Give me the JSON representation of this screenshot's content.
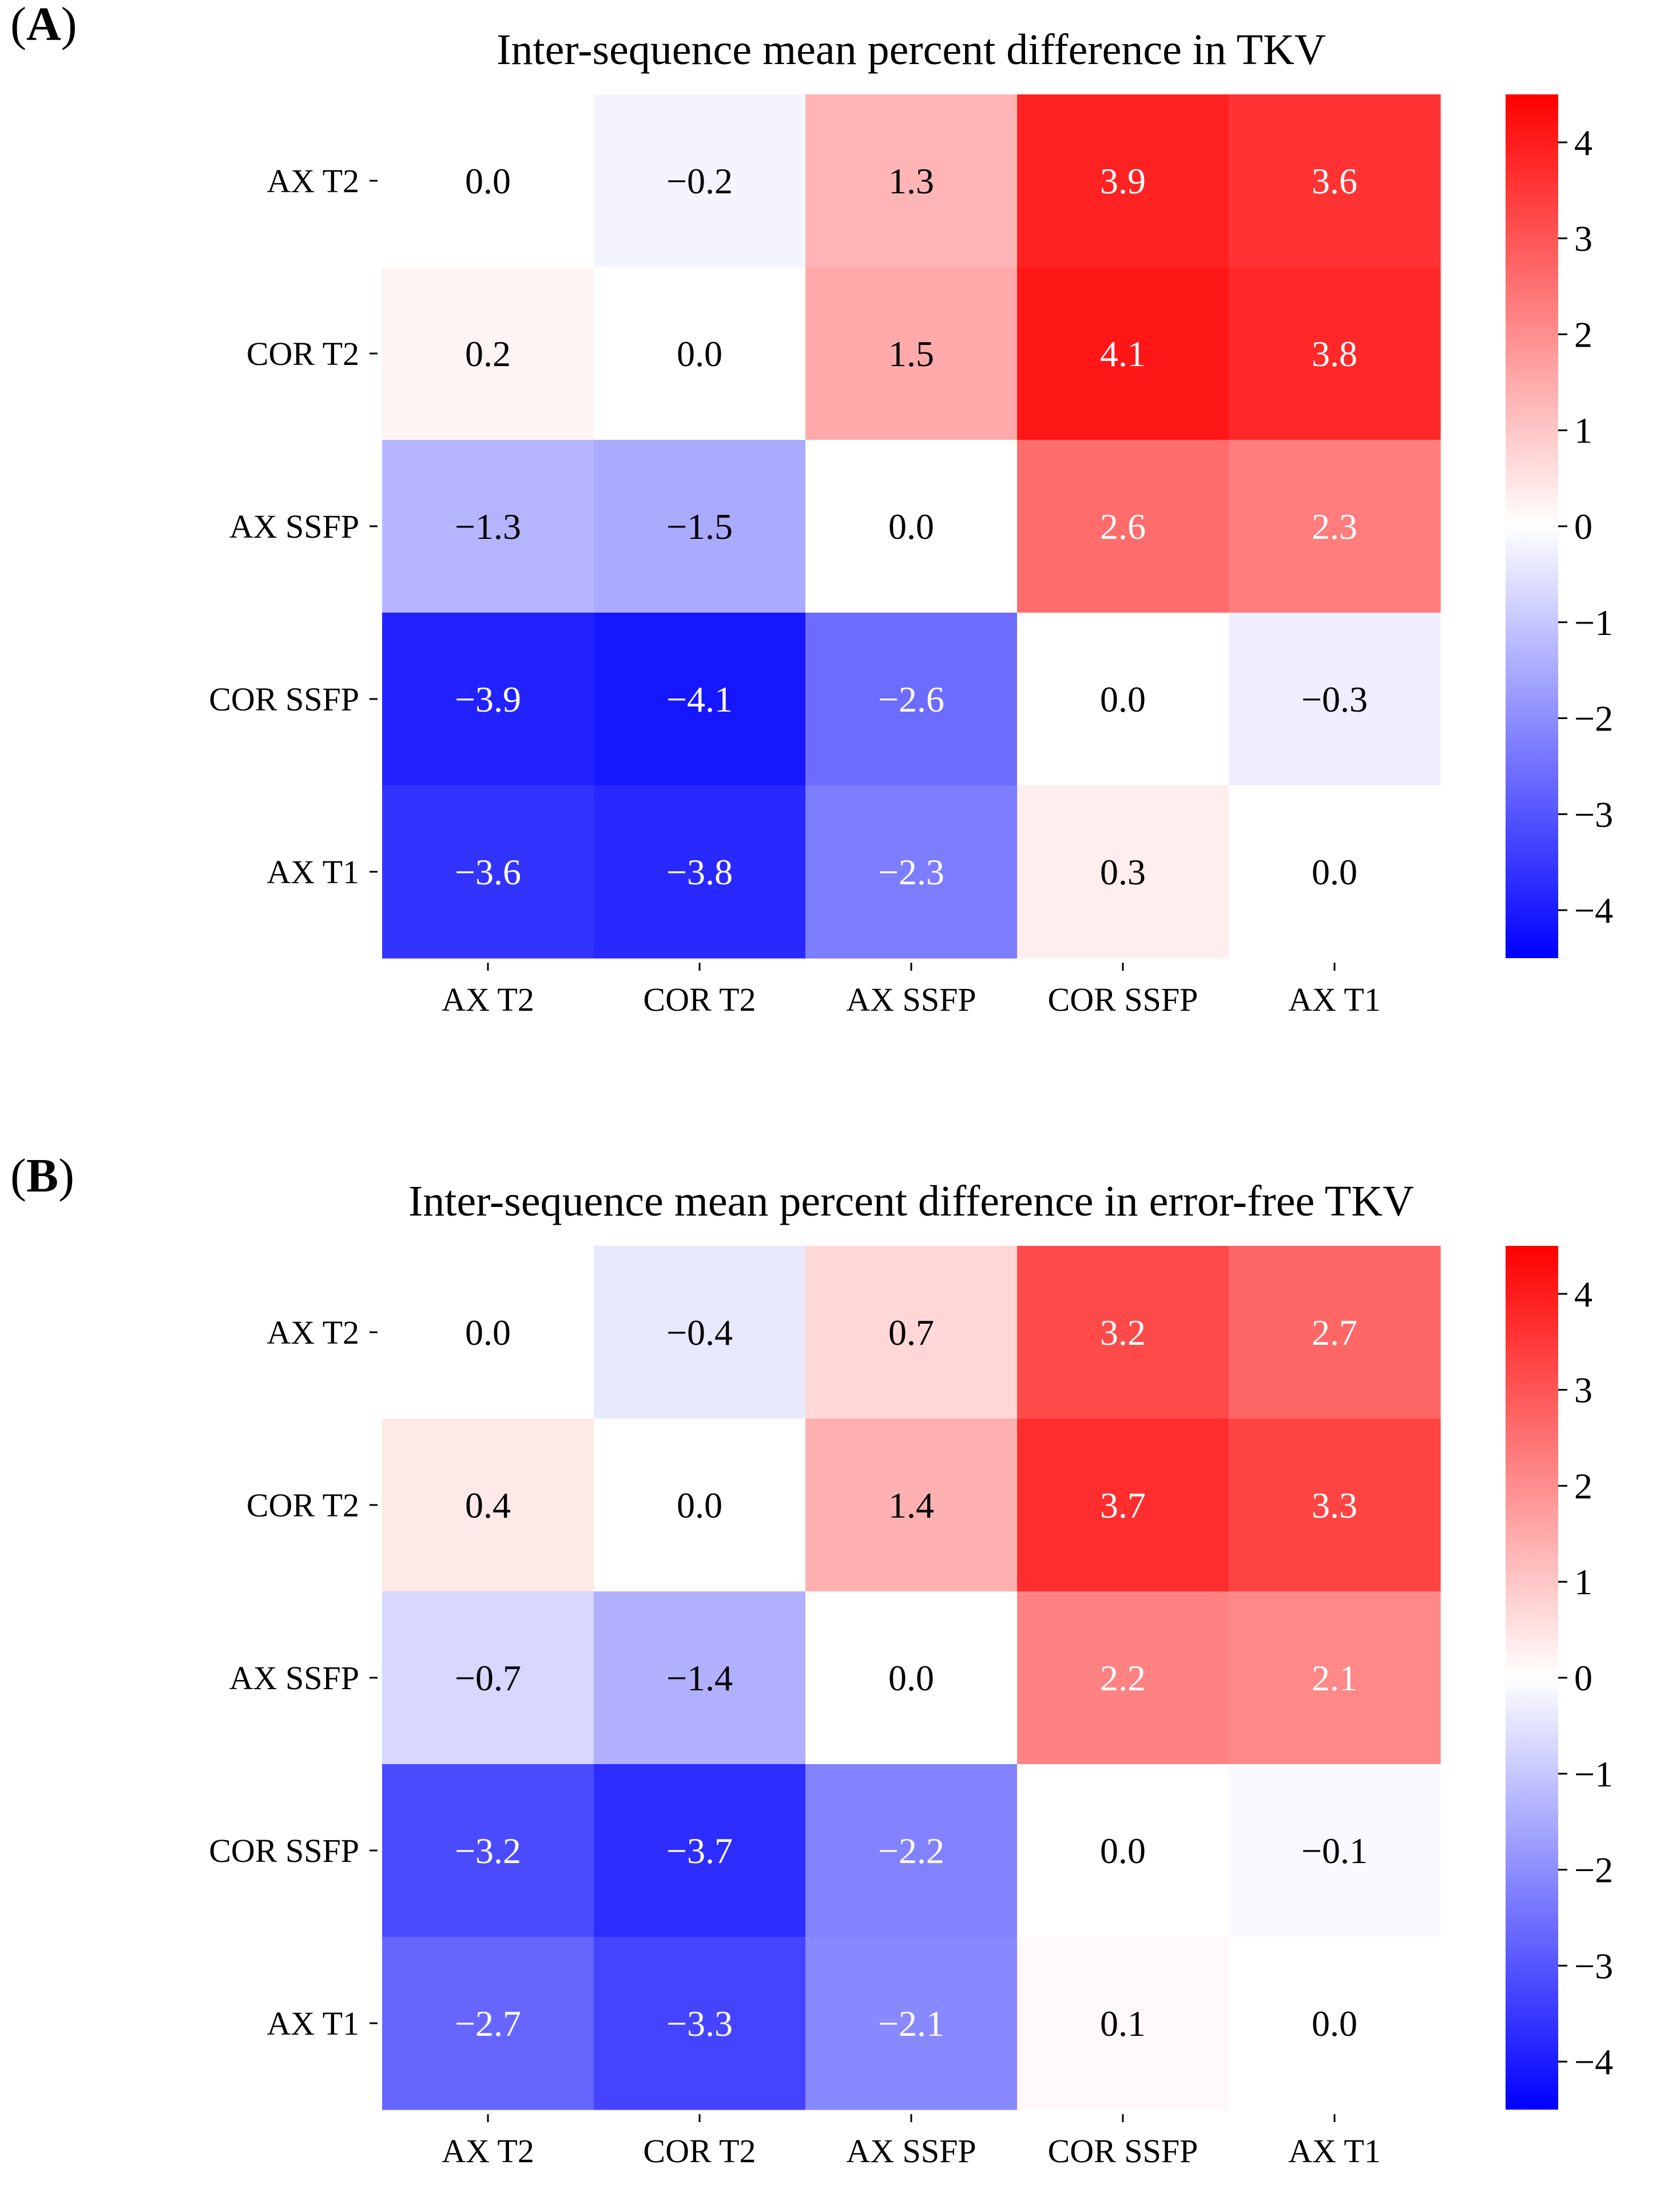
{
  "chart_data": [
    {
      "type": "heatmap",
      "panel_label": "A",
      "title": "Inter-sequence mean percent difference in TKV",
      "row_labels": [
        "AX T2",
        "COR T2",
        "AX SSFP",
        "COR SSFP",
        "AX T1"
      ],
      "column_labels": [
        "AX T2",
        "COR T2",
        "AX SSFP",
        "COR SSFP",
        "AX T1"
      ],
      "values": [
        [
          0.0,
          -0.2,
          1.3,
          3.9,
          3.6
        ],
        [
          0.2,
          0.0,
          1.5,
          4.1,
          3.8
        ],
        [
          -1.3,
          -1.5,
          0.0,
          2.6,
          2.3
        ],
        [
          -3.9,
          -4.1,
          -2.6,
          0.0,
          -0.3
        ],
        [
          -3.6,
          -3.8,
          -2.3,
          0.3,
          0.0
        ]
      ],
      "value_labels": [
        [
          "0.0",
          "−0.2",
          "1.3",
          "3.9",
          "3.6"
        ],
        [
          "0.2",
          "0.0",
          "1.5",
          "4.1",
          "3.8"
        ],
        [
          "−1.3",
          "−1.5",
          "0.0",
          "2.6",
          "2.3"
        ],
        [
          "−3.9",
          "−4.1",
          "−2.6",
          "0.0",
          "−0.3"
        ],
        [
          "−3.6",
          "−3.8",
          "−2.3",
          "0.3",
          "0.0"
        ]
      ],
      "colormap": "bwr",
      "vmin": -4.5,
      "vmax": 4.5,
      "colorbar_ticks": [
        4,
        3,
        2,
        1,
        0,
        -1,
        -2,
        -3,
        -4
      ],
      "colorbar_tick_labels": [
        "4",
        "3",
        "2",
        "1",
        "0",
        "−1",
        "−2",
        "−3",
        "−4"
      ]
    },
    {
      "type": "heatmap",
      "panel_label": "B",
      "title": "Inter-sequence mean percent difference in error-free TKV",
      "row_labels": [
        "AX T2",
        "COR T2",
        "AX SSFP",
        "COR SSFP",
        "AX T1"
      ],
      "column_labels": [
        "AX T2",
        "COR T2",
        "AX SSFP",
        "COR SSFP",
        "AX T1"
      ],
      "values": [
        [
          0.0,
          -0.4,
          0.7,
          3.2,
          2.7
        ],
        [
          0.4,
          0.0,
          1.4,
          3.7,
          3.3
        ],
        [
          -0.7,
          -1.4,
          0.0,
          2.2,
          2.1
        ],
        [
          -3.2,
          -3.7,
          -2.2,
          0.0,
          -0.1
        ],
        [
          -2.7,
          -3.3,
          -2.1,
          0.1,
          0.0
        ]
      ],
      "value_labels": [
        [
          "0.0",
          "−0.4",
          "0.7",
          "3.2",
          "2.7"
        ],
        [
          "0.4",
          "0.0",
          "1.4",
          "3.7",
          "3.3"
        ],
        [
          "−0.7",
          "−1.4",
          "0.0",
          "2.2",
          "2.1"
        ],
        [
          "−3.2",
          "−3.7",
          "−2.2",
          "0.0",
          "−0.1"
        ],
        [
          "−2.7",
          "−3.3",
          "−2.1",
          "0.1",
          "0.0"
        ]
      ],
      "colormap": "bwr",
      "vmin": -4.5,
      "vmax": 4.5,
      "colorbar_ticks": [
        4,
        3,
        2,
        1,
        0,
        -1,
        -2,
        -3,
        -4
      ],
      "colorbar_tick_labels": [
        "4",
        "3",
        "2",
        "1",
        "0",
        "−1",
        "−2",
        "−3",
        "−4"
      ]
    }
  ]
}
